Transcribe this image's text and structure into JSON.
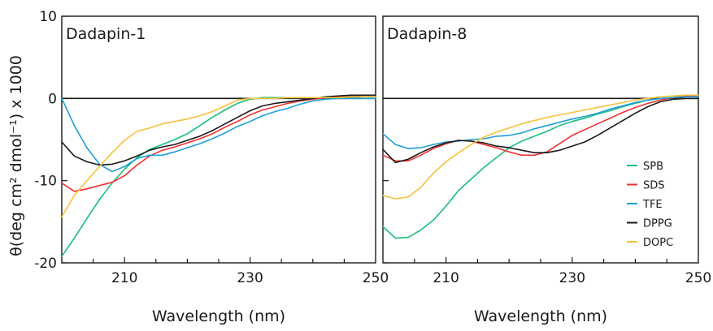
{
  "chart_data": {
    "type": "line",
    "ylabel": "θ(deg cm² dmol⁻¹) x 1000",
    "xlabel": "Wavelength (nm)",
    "xlim": [
      200,
      250
    ],
    "ylim": [
      -20,
      10
    ],
    "x_ticks": [
      210,
      230,
      250
    ],
    "y_ticks": [
      10,
      0,
      -10,
      -20
    ],
    "x_tick_labels": [
      "210",
      "230",
      "250"
    ],
    "y_tick_labels": [
      "10",
      "0",
      "-10",
      "-20"
    ],
    "legend_position": "right",
    "series_colors": {
      "SPB": "#1bbf7a",
      "SDS": "#f0302f",
      "TFE": "#1e9fd8",
      "DPPG": "#1a1a1a",
      "DOPC": "#f7c13b"
    },
    "panels": [
      {
        "title": "Dadapin-1",
        "series": [
          {
            "name": "SPB",
            "x": [
              200,
              202,
              204,
              206,
              208,
              210,
              212,
              214,
              216,
              218,
              220,
              222,
              224,
              226,
              228,
              230,
              232,
              234,
              236,
              238,
              240,
              242,
              244,
              246,
              248,
              250
            ],
            "y": [
              -19.2,
              -17.0,
              -14.6,
              -12.3,
              -10.3,
              -8.6,
              -7.2,
              -6.2,
              -5.6,
              -5.0,
              -4.3,
              -3.3,
              -2.3,
              -1.4,
              -0.6,
              -0.1,
              0.1,
              0.1,
              0.1,
              0.1,
              0.1,
              0.1,
              0.1,
              0.1,
              0.2,
              0.2
            ]
          },
          {
            "name": "SDS",
            "x": [
              200,
              202,
              204,
              206,
              208,
              210,
              212,
              214,
              216,
              218,
              220,
              222,
              224,
              226,
              228,
              230,
              232,
              234,
              236,
              238,
              240,
              242,
              244,
              246,
              248,
              250
            ],
            "y": [
              -10.3,
              -11.3,
              -11.0,
              -10.6,
              -10.2,
              -9.4,
              -8.1,
              -7.0,
              -6.3,
              -5.9,
              -5.4,
              -4.9,
              -4.3,
              -3.5,
              -2.8,
              -2.0,
              -1.4,
              -1.0,
              -0.6,
              -0.3,
              -0.1,
              0.1,
              0.2,
              0.3,
              0.4,
              0.4
            ]
          },
          {
            "name": "TFE",
            "x": [
              200,
              202,
              204,
              206,
              208,
              210,
              212,
              214,
              216,
              218,
              220,
              222,
              224,
              226,
              228,
              230,
              232,
              234,
              236,
              238,
              240,
              242,
              244,
              246,
              248,
              250
            ],
            "y": [
              0,
              -3.3,
              -6.0,
              -8.0,
              -8.9,
              -8.3,
              -7.3,
              -6.9,
              -6.9,
              -6.5,
              -6.0,
              -5.5,
              -4.9,
              -4.2,
              -3.4,
              -2.8,
              -2.1,
              -1.6,
              -1.2,
              -0.7,
              -0.3,
              -0.1,
              0,
              0,
              0,
              0
            ]
          },
          {
            "name": "DPPG",
            "x": [
              200,
              202,
              204,
              206,
              208,
              210,
              212,
              214,
              216,
              218,
              220,
              222,
              224,
              226,
              228,
              230,
              232,
              234,
              236,
              238,
              240,
              242,
              244,
              246,
              248,
              250
            ],
            "y": [
              -5.3,
              -7.0,
              -7.7,
              -8.1,
              -8.0,
              -7.6,
              -7.0,
              -6.3,
              -5.9,
              -5.6,
              -5.1,
              -4.6,
              -3.9,
              -3.1,
              -2.3,
              -1.5,
              -0.9,
              -0.6,
              -0.4,
              -0.2,
              0,
              0.2,
              0.3,
              0.4,
              0.4,
              0.4
            ]
          },
          {
            "name": "DOPC",
            "x": [
              200,
              202,
              204,
              206,
              208,
              210,
              212,
              214,
              216,
              218,
              220,
              222,
              224,
              226,
              228,
              230,
              232,
              234,
              236,
              238,
              240,
              242,
              244,
              246,
              248,
              250
            ],
            "y": [
              -14.4,
              -11.8,
              -10.0,
              -8.3,
              -6.6,
              -5.1,
              -4.0,
              -3.6,
              -3.1,
              -2.8,
              -2.5,
              -2.1,
              -1.6,
              -0.9,
              -0.2,
              0,
              0,
              0,
              0.1,
              0.1,
              0.1,
              0.1,
              0.1,
              0.2,
              0.2,
              0.2
            ]
          }
        ]
      },
      {
        "title": "Dadapin-8",
        "series": [
          {
            "name": "SPB",
            "x": [
              200,
              202,
              204,
              206,
              208,
              210,
              212,
              214,
              216,
              218,
              220,
              222,
              224,
              226,
              228,
              230,
              232,
              234,
              236,
              238,
              240,
              242,
              244,
              246,
              248,
              250
            ],
            "y": [
              -15.6,
              -17.0,
              -16.9,
              -16.0,
              -14.8,
              -13.1,
              -11.2,
              -9.8,
              -8.4,
              -7.2,
              -6.0,
              -5.2,
              -4.6,
              -4.0,
              -3.3,
              -2.8,
              -2.4,
              -1.9,
              -1.5,
              -1.0,
              -0.6,
              -0.2,
              0,
              0.1,
              0.3,
              0.3
            ]
          },
          {
            "name": "SDS",
            "x": [
              200,
              202,
              204,
              206,
              208,
              210,
              212,
              214,
              216,
              218,
              220,
              222,
              224,
              226,
              228,
              230,
              232,
              234,
              236,
              238,
              240,
              242,
              244,
              246,
              248,
              250
            ],
            "y": [
              -6.9,
              -7.6,
              -7.6,
              -6.9,
              -6.1,
              -5.5,
              -5.1,
              -5.2,
              -5.6,
              -6.0,
              -6.5,
              -6.9,
              -6.9,
              -6.5,
              -5.5,
              -4.5,
              -3.8,
              -3.1,
              -2.4,
              -1.7,
              -1.1,
              -0.6,
              -0.2,
              0.1,
              0.3,
              0.3
            ]
          },
          {
            "name": "TFE",
            "x": [
              200,
              202,
              204,
              206,
              208,
              210,
              212,
              214,
              216,
              218,
              220,
              222,
              224,
              226,
              228,
              230,
              232,
              234,
              236,
              238,
              240,
              242,
              244,
              246,
              248,
              250
            ],
            "y": [
              -4.3,
              -5.6,
              -6.1,
              -6.0,
              -5.6,
              -5.3,
              -5.2,
              -5.0,
              -4.9,
              -4.6,
              -4.5,
              -4.2,
              -3.7,
              -3.3,
              -2.9,
              -2.5,
              -2.2,
              -1.8,
              -1.3,
              -0.9,
              -0.5,
              -0.2,
              0,
              0.1,
              0.2,
              0.2
            ]
          },
          {
            "name": "DPPG",
            "x": [
              200,
              202,
              204,
              206,
              208,
              210,
              212,
              214,
              216,
              218,
              220,
              222,
              224,
              226,
              228,
              230,
              232,
              234,
              236,
              238,
              240,
              242,
              244,
              246,
              248,
              250
            ],
            "y": [
              -6.2,
              -7.8,
              -7.4,
              -6.6,
              -5.9,
              -5.4,
              -5.1,
              -5.2,
              -5.4,
              -5.8,
              -6.0,
              -6.3,
              -6.6,
              -6.6,
              -6.3,
              -5.8,
              -5.3,
              -4.5,
              -3.6,
              -2.7,
              -1.8,
              -1.0,
              -0.4,
              -0.1,
              0,
              0
            ]
          },
          {
            "name": "DOPC",
            "x": [
              200,
              202,
              204,
              206,
              208,
              210,
              212,
              214,
              216,
              218,
              220,
              222,
              224,
              226,
              228,
              230,
              232,
              234,
              236,
              238,
              240,
              242,
              244,
              246,
              248,
              250
            ],
            "y": [
              -11.8,
              -12.2,
              -12.0,
              -10.8,
              -9.1,
              -7.7,
              -6.6,
              -5.6,
              -4.7,
              -4.1,
              -3.6,
              -3.1,
              -2.7,
              -2.3,
              -2.0,
              -1.7,
              -1.4,
              -1.1,
              -0.8,
              -0.5,
              -0.2,
              0,
              0.2,
              0.3,
              0.4,
              0.4
            ]
          }
        ]
      }
    ]
  }
}
